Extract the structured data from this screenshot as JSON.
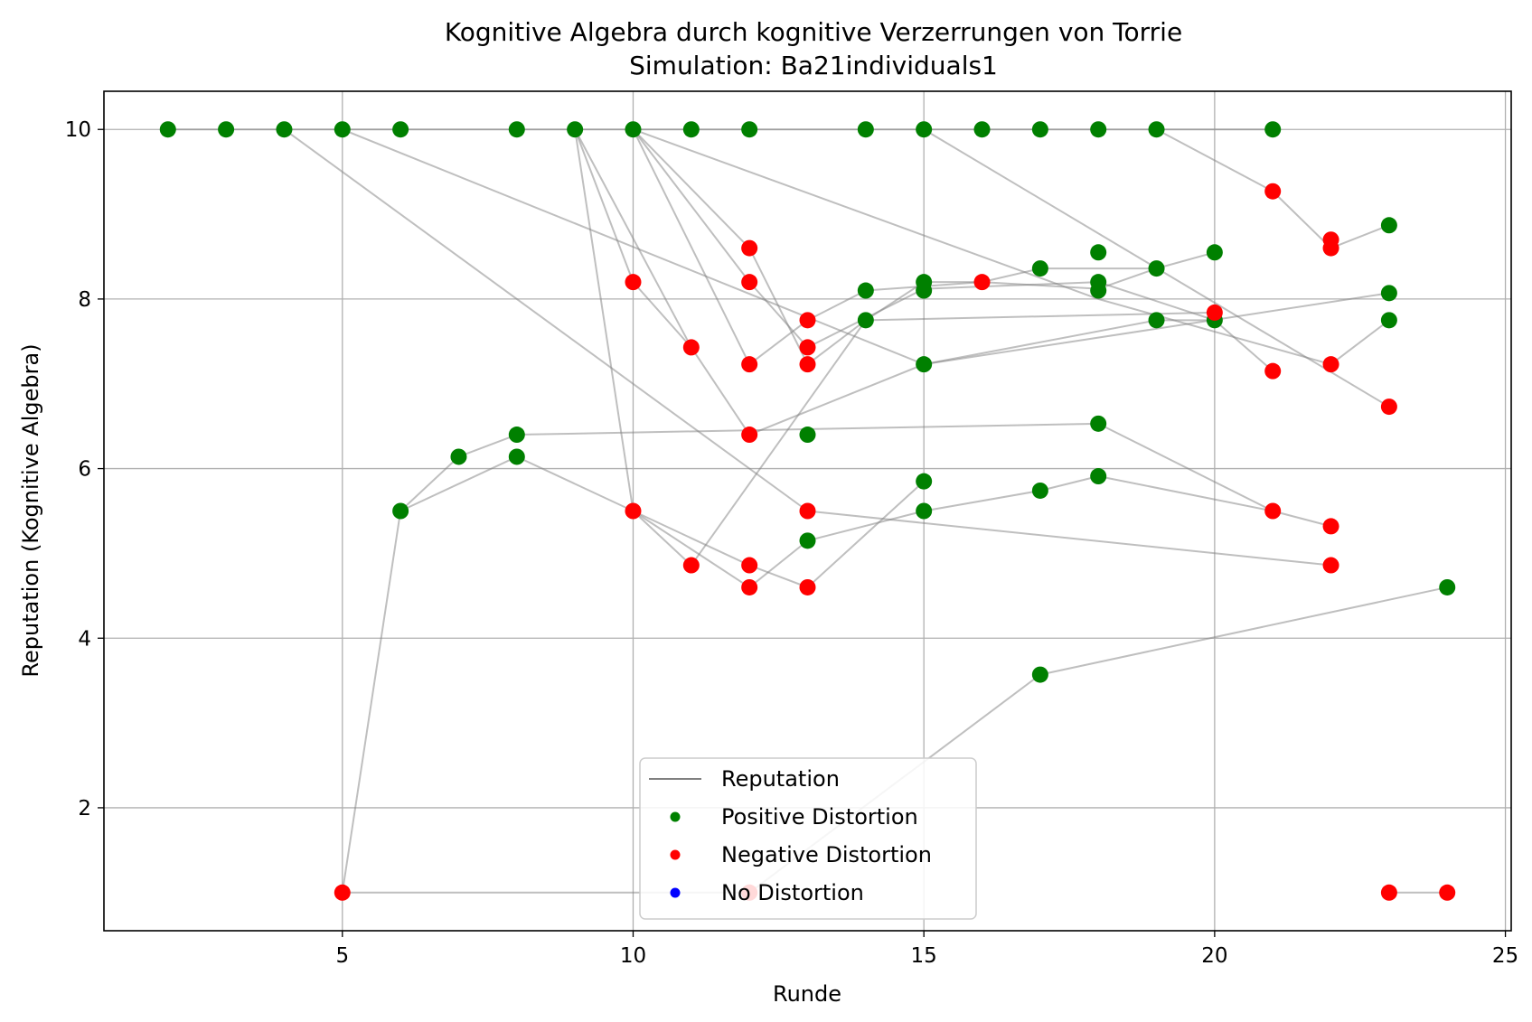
{
  "chart_data": {
    "type": "scatter",
    "title": "Kognitive Algebra durch kognitive Verzerrungen von Torrie",
    "subtitle": "Simulation: Ba21individuals1",
    "xlabel": "Runde",
    "ylabel": "Reputation (Kognitive Algebra)",
    "xlim": [
      0.9,
      25.1
    ],
    "ylim": [
      0.55,
      10.45
    ],
    "xticks": [
      5,
      10,
      15,
      20,
      25
    ],
    "yticks": [
      2,
      4,
      6,
      8,
      10
    ],
    "grid": true,
    "legend_position": "lower-center",
    "legend": [
      {
        "label": "Reputation",
        "kind": "line",
        "color": "#808080"
      },
      {
        "label": "Positive Distortion",
        "kind": "marker",
        "color": "#008000"
      },
      {
        "label": "Negative Distortion",
        "kind": "marker",
        "color": "#ff0000"
      },
      {
        "label": "No Distortion",
        "kind": "marker",
        "color": "#0000ff"
      }
    ],
    "colors": {
      "positive": "#008000",
      "negative": "#ff0000",
      "none": "#0000ff",
      "line": "#808080",
      "grid": "#b0b0b0"
    },
    "segments": [
      [
        2,
        10,
        3,
        10
      ],
      [
        3,
        10,
        4,
        10
      ],
      [
        4,
        10,
        5,
        10
      ],
      [
        5,
        10,
        6,
        10
      ],
      [
        6,
        10,
        8,
        10
      ],
      [
        8,
        10,
        9,
        10
      ],
      [
        9,
        10,
        10,
        10
      ],
      [
        10,
        10,
        11,
        10
      ],
      [
        11,
        10,
        12,
        10
      ],
      [
        12,
        10,
        14,
        10
      ],
      [
        14,
        10,
        15,
        10
      ],
      [
        15,
        10,
        16,
        10
      ],
      [
        16,
        10,
        17,
        10
      ],
      [
        17,
        10,
        18,
        10
      ],
      [
        18,
        10,
        19,
        10
      ],
      [
        19,
        10,
        21,
        10
      ],
      [
        5,
        1,
        6,
        5.5
      ],
      [
        6,
        5.5,
        7,
        6.14
      ],
      [
        6,
        5.5,
        8,
        6.14
      ],
      [
        7,
        6.14,
        8,
        6.4
      ],
      [
        8,
        6.4,
        18,
        6.53
      ],
      [
        18,
        6.53,
        21,
        5.5
      ],
      [
        21,
        5.5,
        22,
        5.32
      ],
      [
        8,
        6.14,
        10,
        5.5
      ],
      [
        10,
        5.5,
        12,
        4.6
      ],
      [
        12,
        4.6,
        13,
        5.15
      ],
      [
        13,
        5.15,
        15,
        5.5
      ],
      [
        15,
        5.5,
        17,
        5.74
      ],
      [
        17,
        5.74,
        18,
        5.91
      ],
      [
        18,
        5.91,
        21,
        5.5
      ],
      [
        10,
        5.5,
        12,
        4.86
      ],
      [
        12,
        4.86,
        13,
        4.6
      ],
      [
        13,
        4.6,
        15,
        5.85
      ],
      [
        5,
        1,
        12,
        1
      ],
      [
        12,
        1,
        17,
        3.57
      ],
      [
        17,
        3.57,
        24,
        4.6
      ],
      [
        23,
        1,
        24,
        1
      ],
      [
        4,
        10,
        13,
        5.5
      ],
      [
        13,
        5.5,
        22,
        4.86
      ],
      [
        5,
        10,
        15,
        7.23
      ],
      [
        15,
        7.23,
        23,
        8.07
      ],
      [
        9,
        10,
        10,
        8.2
      ],
      [
        10,
        8.2,
        11,
        7.43
      ],
      [
        9,
        10,
        11,
        7.43
      ],
      [
        11,
        7.43,
        12,
        6.4
      ],
      [
        12,
        6.4,
        15,
        7.23
      ],
      [
        9,
        10,
        10,
        5.5
      ],
      [
        10,
        5.5,
        11,
        4.86
      ],
      [
        11,
        4.86,
        14,
        7.75
      ],
      [
        14,
        7.75,
        15,
        8.2
      ],
      [
        15,
        8.2,
        16,
        8.2
      ],
      [
        16,
        8.2,
        17,
        8.36
      ],
      [
        17,
        8.36,
        19,
        8.36
      ],
      [
        10,
        10,
        12,
        8.6
      ],
      [
        12,
        8.6,
        13,
        7.23
      ],
      [
        13,
        7.23,
        14,
        7.75
      ],
      [
        14,
        7.75,
        20,
        7.84
      ],
      [
        10,
        10,
        12,
        8.2
      ],
      [
        12,
        8.2,
        13,
        7.43
      ],
      [
        13,
        7.43,
        15,
        8.12
      ],
      [
        15,
        8.12,
        18,
        8.2
      ],
      [
        18,
        8.2,
        20,
        7.75
      ],
      [
        20,
        7.75,
        21,
        7.15
      ],
      [
        10,
        10,
        12,
        7.23
      ],
      [
        12,
        7.23,
        13,
        7.75
      ],
      [
        13,
        7.75,
        14,
        8.1
      ],
      [
        14,
        8.1,
        16,
        8.2
      ],
      [
        16,
        8.2,
        18,
        8.12
      ],
      [
        18,
        8.12,
        19,
        8.36
      ],
      [
        19,
        8.36,
        20,
        8.55
      ],
      [
        10,
        10,
        18,
        8.0
      ],
      [
        18,
        8.0,
        22,
        7.23
      ],
      [
        22,
        7.23,
        23,
        7.75
      ],
      [
        15,
        10,
        23,
        6.73
      ],
      [
        19,
        10,
        21,
        9.27
      ],
      [
        21,
        9.27,
        22,
        8.6
      ],
      [
        22,
        8.6,
        23,
        8.87
      ],
      [
        15,
        7.23,
        19,
        7.75
      ],
      [
        19,
        7.75,
        20,
        7.75
      ]
    ],
    "positive": [
      [
        2,
        10
      ],
      [
        3,
        10
      ],
      [
        4,
        10
      ],
      [
        5,
        10
      ],
      [
        6,
        10
      ],
      [
        8,
        10
      ],
      [
        9,
        10
      ],
      [
        10,
        10
      ],
      [
        11,
        10
      ],
      [
        12,
        10
      ],
      [
        14,
        10
      ],
      [
        15,
        10
      ],
      [
        16,
        10
      ],
      [
        17,
        10
      ],
      [
        18,
        10
      ],
      [
        19,
        10
      ],
      [
        21,
        10
      ],
      [
        23,
        8.87
      ],
      [
        18,
        8.55
      ],
      [
        20,
        8.55
      ],
      [
        17,
        8.36
      ],
      [
        19,
        8.36
      ],
      [
        15,
        8.2
      ],
      [
        18,
        8.2
      ],
      [
        14,
        8.1
      ],
      [
        15,
        8.1
      ],
      [
        18,
        8.1
      ],
      [
        23,
        8.07
      ],
      [
        14,
        7.75
      ],
      [
        19,
        7.75
      ],
      [
        20,
        7.75
      ],
      [
        23,
        7.75
      ],
      [
        15,
        7.23
      ],
      [
        13,
        6.4
      ],
      [
        18,
        6.53
      ],
      [
        8,
        6.4
      ],
      [
        7,
        6.14
      ],
      [
        8,
        6.14
      ],
      [
        18,
        5.91
      ],
      [
        15,
        5.85
      ],
      [
        17,
        5.74
      ],
      [
        6,
        5.5
      ],
      [
        15,
        5.5
      ],
      [
        13,
        5.15
      ],
      [
        24,
        4.6
      ],
      [
        17,
        3.57
      ]
    ],
    "negative": [
      [
        21,
        9.27
      ],
      [
        22,
        8.7
      ],
      [
        22,
        8.6
      ],
      [
        12,
        8.6
      ],
      [
        10,
        8.2
      ],
      [
        12,
        8.2
      ],
      [
        16,
        8.2
      ],
      [
        20,
        7.84
      ],
      [
        13,
        7.75
      ],
      [
        11,
        7.43
      ],
      [
        13,
        7.43
      ],
      [
        12,
        7.23
      ],
      [
        13,
        7.23
      ],
      [
        22,
        7.23
      ],
      [
        21,
        7.15
      ],
      [
        23,
        6.73
      ],
      [
        12,
        6.4
      ],
      [
        10,
        5.5
      ],
      [
        13,
        5.5
      ],
      [
        21,
        5.5
      ],
      [
        22,
        5.32
      ],
      [
        11,
        4.86
      ],
      [
        12,
        4.86
      ],
      [
        22,
        4.86
      ],
      [
        12,
        4.6
      ],
      [
        13,
        4.6
      ],
      [
        5,
        1
      ],
      [
        12,
        1
      ],
      [
        23,
        1
      ],
      [
        24,
        1
      ]
    ],
    "none": []
  }
}
